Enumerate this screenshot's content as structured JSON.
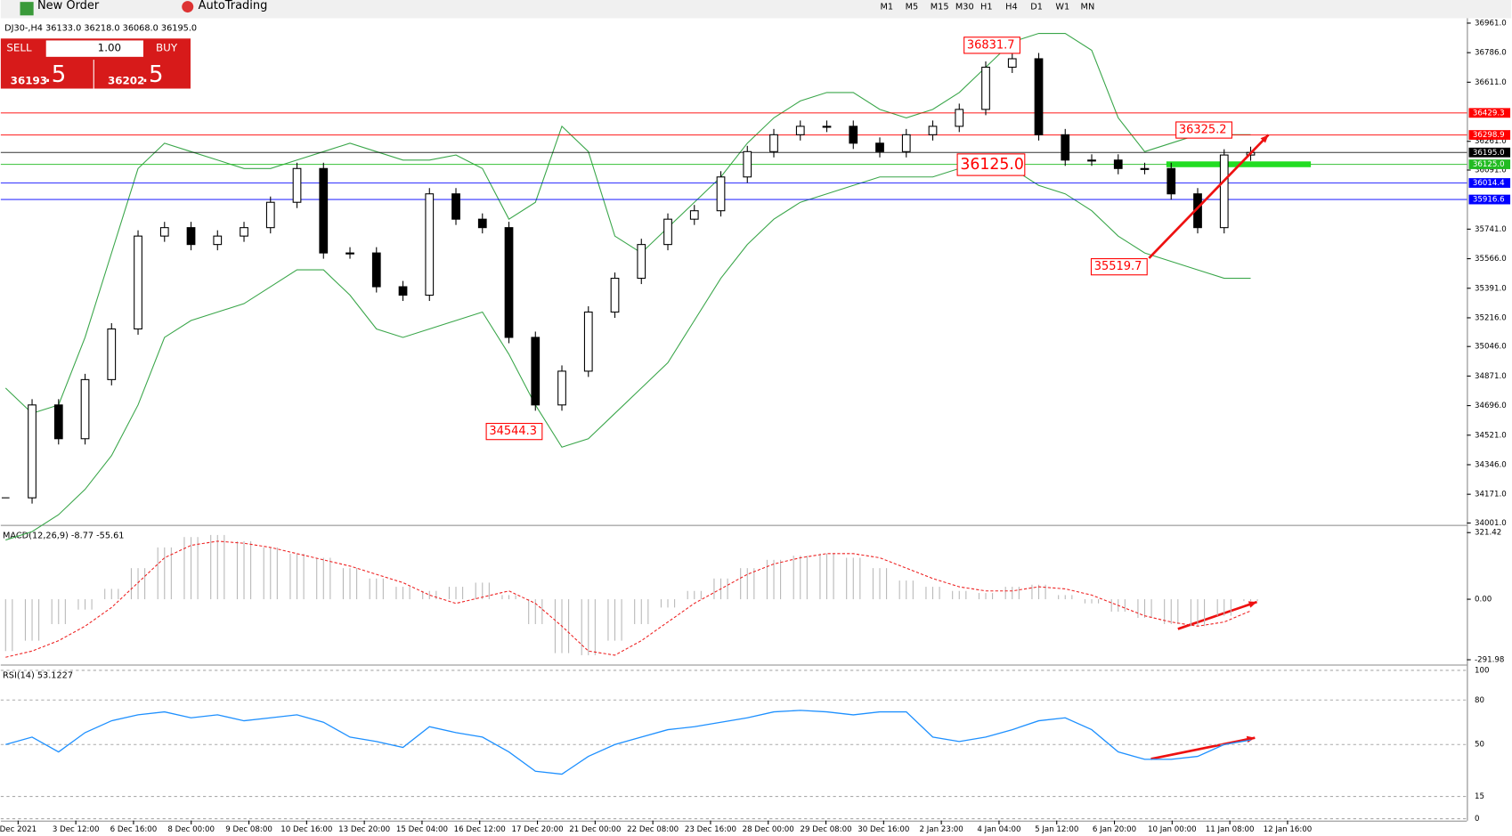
{
  "toolbar": {
    "new_order": "New Order",
    "auto_trading": "AutoTrading",
    "timeframes": [
      "M1",
      "M5",
      "M15",
      "M30",
      "H1",
      "H4",
      "D1",
      "W1",
      "MN"
    ]
  },
  "trade_panel": {
    "sell": "SELL",
    "buy": "BUY",
    "lots": "1.00",
    "bid_main": "36193",
    "bid_big": ".5",
    "ask_main": "36202",
    "ask_big": ".5"
  },
  "chart_data": {
    "type": "candlestick",
    "title": "DJ30-,H4  36133.0 36218.0 36068.0 36195.0",
    "ylim": [
      34001,
      36961
    ],
    "yticks": [
      {
        "value": 36961,
        "label": "36961.0"
      },
      {
        "value": 36786,
        "label": "36786.0"
      },
      {
        "value": 36611,
        "label": "36611.0"
      },
      {
        "value": 36261,
        "label": "36261.0"
      },
      {
        "value": 36091,
        "label": "36091.0"
      },
      {
        "value": 35741,
        "label": "35741.0"
      },
      {
        "value": 35566,
        "label": "35566.0"
      },
      {
        "value": 35391,
        "label": "35391.0"
      },
      {
        "value": 35216,
        "label": "35216.0"
      },
      {
        "value": 35046,
        "label": "35046.0"
      },
      {
        "value": 34871,
        "label": "34871.0"
      },
      {
        "value": 34696,
        "label": "34696.0"
      },
      {
        "value": 34521,
        "label": "34521.0"
      },
      {
        "value": 34346,
        "label": "34346.0"
      },
      {
        "value": 34171,
        "label": "34171.0"
      },
      {
        "value": 34001,
        "label": "34001.0"
      }
    ],
    "time_labels": [
      "Dec 2021",
      "3 Dec 12:00",
      "6 Dec 16:00",
      "8 Dec 00:00",
      "9 Dec 08:00",
      "10 Dec 16:00",
      "13 Dec 20:00",
      "15 Dec 04:00",
      "16 Dec 12:00",
      "17 Dec 20:00",
      "21 Dec 00:00",
      "22 Dec 08:00",
      "23 Dec 16:00",
      "28 Dec 00:00",
      "29 Dec 08:00",
      "30 Dec 16:00",
      "2 Jan 23:00",
      "4 Jan 04:00",
      "5 Jan 12:00",
      "6 Jan 20:00",
      "10 Jan 00:00",
      "11 Jan 08:00",
      "12 Jan 16:00"
    ],
    "close": [
      34150,
      34700,
      34500,
      34850,
      35150,
      35700,
      35750,
      35650,
      35700,
      35750,
      35900,
      36100,
      35600,
      35600,
      35400,
      35350,
      35950,
      35800,
      35750,
      35100,
      34700,
      34900,
      35250,
      35450,
      35650,
      35800,
      35850,
      36050,
      36200,
      36300,
      36350,
      36350,
      36250,
      36200,
      36300,
      36350,
      36450,
      36700,
      36750,
      36300,
      36150,
      36150,
      36100,
      36100,
      35950,
      35750,
      36180,
      36195
    ],
    "upper_band": [
      34800,
      34650,
      34700,
      35100,
      35600,
      36100,
      36250,
      36200,
      36150,
      36100,
      36100,
      36150,
      36200,
      36250,
      36200,
      36150,
      36150,
      36180,
      36100,
      35800,
      35900,
      36350,
      36200,
      35700,
      35600,
      35750,
      35900,
      36050,
      36250,
      36400,
      36500,
      36550,
      36550,
      36450,
      36400,
      36450,
      36550,
      36700,
      36850,
      36900,
      36900,
      36800,
      36400,
      36200,
      36250,
      36300,
      36300,
      36300
    ],
    "lower_band": [
      33900,
      33950,
      34050,
      34200,
      34400,
      34700,
      35100,
      35200,
      35250,
      35300,
      35400,
      35500,
      35500,
      35350,
      35150,
      35100,
      35150,
      35200,
      35250,
      35000,
      34700,
      34450,
      34500,
      34650,
      34800,
      34950,
      35200,
      35450,
      35650,
      35800,
      35900,
      35950,
      36000,
      36050,
      36050,
      36050,
      36100,
      36150,
      36100,
      36000,
      35950,
      35850,
      35700,
      35600,
      35550,
      35500,
      35450,
      35450
    ],
    "band_color": "#3aa64a",
    "levels": [
      {
        "value": 36429.3,
        "label": "36429.3",
        "color": "#ff0000"
      },
      {
        "value": 36298.9,
        "label": "36298.9",
        "color": "#ff0000"
      },
      {
        "value": 36195,
        "label": "36195.0",
        "color": "#000000"
      },
      {
        "value": 36125,
        "label": "36125.0",
        "color": "#22bb22"
      },
      {
        "value": 36014.4,
        "label": "36014.4",
        "color": "#0000ff"
      },
      {
        "value": 35916.6,
        "label": "35916.6",
        "color": "#0000ff"
      }
    ],
    "annotations": [
      "36831.7",
      "36325.2",
      "36125.0",
      "35519.7",
      "34544.3"
    ],
    "macd": {
      "title": "MACD(12,26,9) -8.77 -55.61",
      "ylim": [
        -291.98,
        321.42
      ],
      "yticks": [
        321.42,
        {
          "value": 0,
          "label": "0.00"
        },
        -291.98
      ],
      "histogram": [
        -250,
        -200,
        -120,
        -50,
        50,
        150,
        250,
        300,
        310,
        280,
        250,
        220,
        200,
        150,
        100,
        60,
        40,
        60,
        80,
        20,
        -120,
        -260,
        -270,
        -200,
        -120,
        -40,
        40,
        100,
        150,
        190,
        210,
        220,
        200,
        150,
        90,
        60,
        40,
        30,
        60,
        70,
        20,
        -20,
        -60,
        -90,
        -120,
        -130,
        -80,
        -9
      ],
      "signal": [
        -280,
        -250,
        -200,
        -130,
        -40,
        80,
        200,
        260,
        280,
        270,
        250,
        220,
        190,
        160,
        120,
        80,
        20,
        -20,
        10,
        40,
        -20,
        -130,
        -250,
        -270,
        -200,
        -110,
        -20,
        50,
        120,
        170,
        200,
        220,
        220,
        200,
        150,
        100,
        60,
        40,
        40,
        60,
        50,
        20,
        -30,
        -80,
        -110,
        -130,
        -110,
        -56
      ]
    },
    "rsi": {
      "title": "RSI(14) 53.1227",
      "ylim": [
        0,
        100
      ],
      "yticks": [
        100,
        80,
        50,
        15,
        0
      ],
      "values": [
        50,
        55,
        45,
        58,
        66,
        70,
        72,
        68,
        70,
        66,
        68,
        70,
        65,
        55,
        52,
        48,
        62,
        58,
        55,
        45,
        32,
        30,
        42,
        50,
        55,
        60,
        62,
        65,
        68,
        72,
        73,
        72,
        70,
        72,
        72,
        55,
        52,
        55,
        60,
        66,
        68,
        60,
        45,
        40,
        40,
        42,
        50,
        53
      ]
    }
  }
}
